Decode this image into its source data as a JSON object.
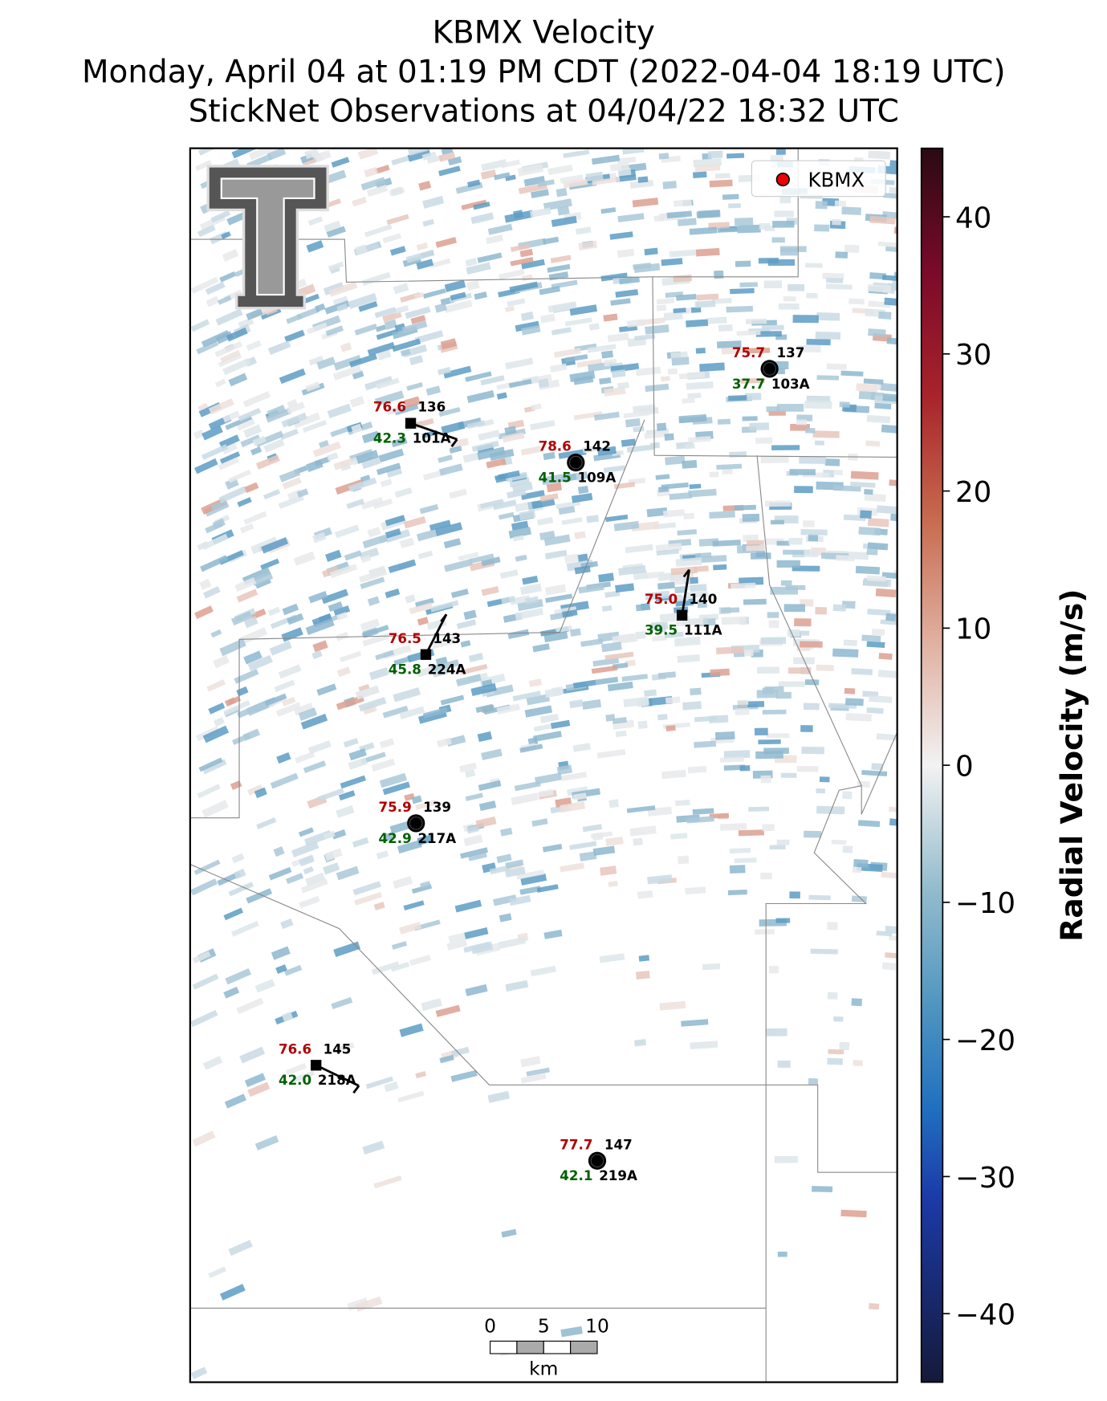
{
  "header": {
    "title": [
      "KBMX Velocity",
      "Monday, April 04 at 01:19 PM CDT (2022-04-04 18:19 UTC)",
      "StickNet Observations at 04/04/22 18:32 UTC"
    ]
  },
  "legend": {
    "label": "KBMX"
  },
  "stations": [
    {
      "temperature": "76.6",
      "dewpoint": "42.3",
      "number": "136",
      "id": "101A"
    },
    {
      "temperature": "78.6",
      "dewpoint": "41.5",
      "number": "142",
      "id": "109A"
    },
    {
      "temperature": "75.7",
      "dewpoint": "37.7",
      "number": "137",
      "id": "103A"
    },
    {
      "temperature": "75.0",
      "dewpoint": "39.5",
      "number": "140",
      "id": "111A"
    },
    {
      "temperature": "76.5",
      "dewpoint": "45.8",
      "number": "143",
      "id": "224A"
    },
    {
      "temperature": "75.9",
      "dewpoint": "42.9",
      "number": "139",
      "id": "217A"
    },
    {
      "temperature": "76.6",
      "dewpoint": "42.0",
      "number": "145",
      "id": "218A"
    },
    {
      "temperature": "77.7",
      "dewpoint": "42.1",
      "number": "147",
      "id": "219A"
    }
  ],
  "colorbar": {
    "label": "Radial Velocity (m/s)",
    "lim": [
      -45,
      45
    ],
    "ticks": [
      {
        "value": -40,
        "label": "−40"
      },
      {
        "value": -30,
        "label": "−30"
      },
      {
        "value": -20,
        "label": "−20"
      },
      {
        "value": -10,
        "label": "−10"
      },
      0,
      10,
      20,
      30,
      40
    ]
  },
  "scale_bar": {
    "ticks": [
      0,
      5,
      10
    ],
    "unit": "km"
  }
}
